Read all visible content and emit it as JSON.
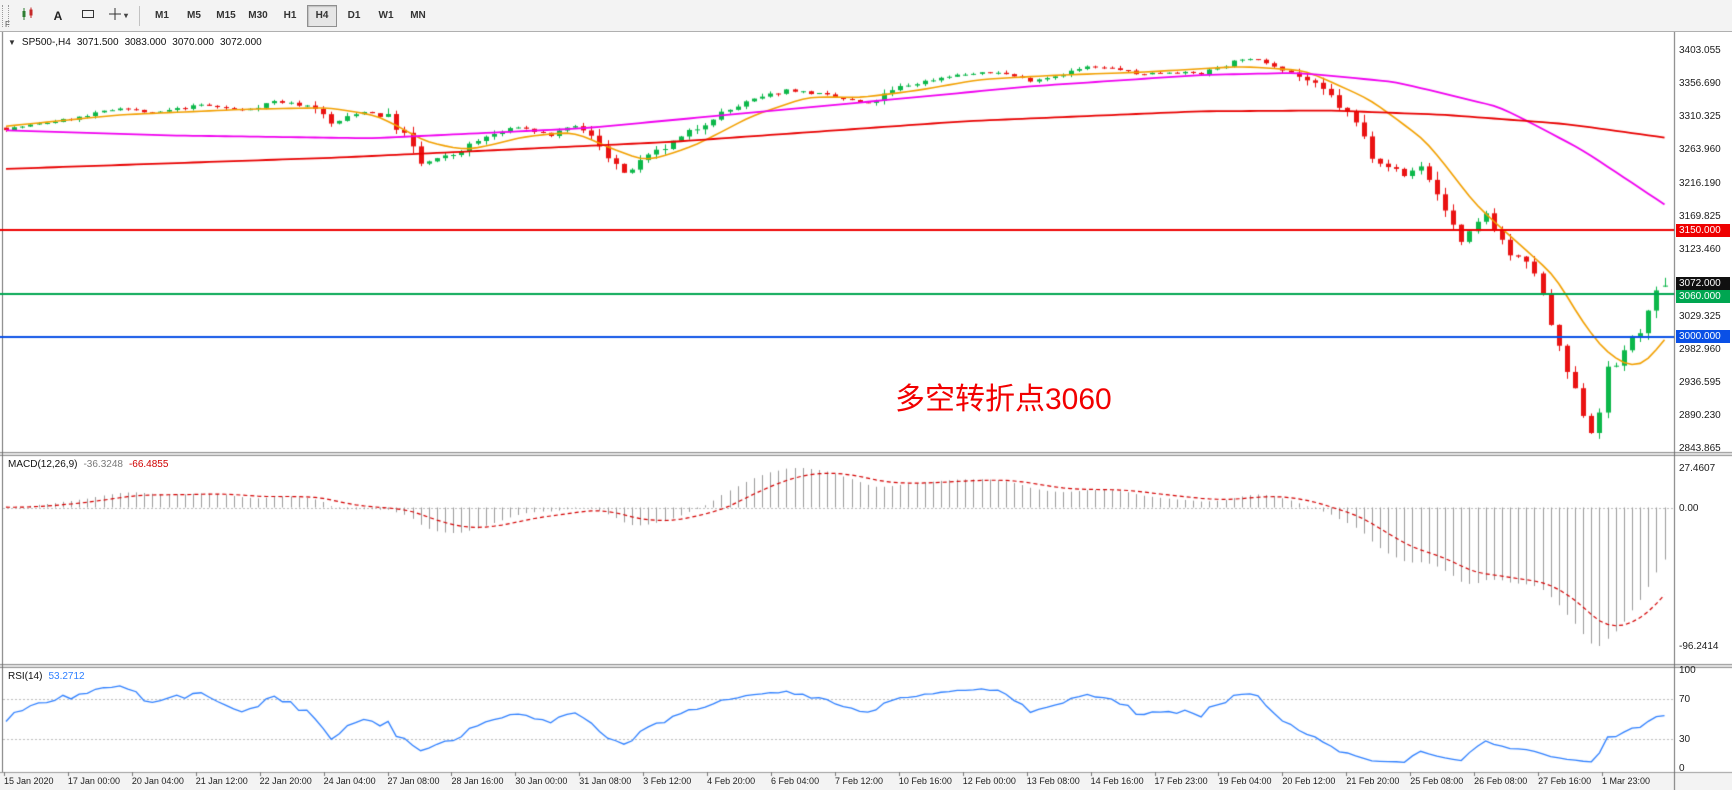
{
  "toolbar": {
    "f_label": "F",
    "text_tool_label": "A",
    "caret_glyph": "▾",
    "timeframes": [
      {
        "label": "M1",
        "active": false
      },
      {
        "label": "M5",
        "active": false
      },
      {
        "label": "M15",
        "active": false
      },
      {
        "label": "M30",
        "active": false
      },
      {
        "label": "H1",
        "active": false
      },
      {
        "label": "H4",
        "active": true
      },
      {
        "label": "D1",
        "active": false
      },
      {
        "label": "W1",
        "active": false
      },
      {
        "label": "MN",
        "active": false
      }
    ]
  },
  "chart": {
    "collapse_glyph": "▼",
    "symbol_title": "SP500-,H4",
    "quote": {
      "open": "3071.500",
      "high": "3083.000",
      "low": "3070.000",
      "close": "3072.000"
    },
    "annotation": {
      "text": "多空转折点3060",
      "color": "#f20000"
    },
    "price_axis": [
      "3403.055",
      "3356.690",
      "3310.325",
      "3263.960",
      "3216.190",
      "3169.825",
      "3123.460",
      "3029.325",
      "2982.960",
      "2936.595",
      "2890.230",
      "2843.865"
    ],
    "levels": [
      {
        "label": "3150.000",
        "price": 3150.0,
        "color": "#ee0000"
      },
      {
        "label": "3060.000",
        "price": 3060.0,
        "color": "#00a651"
      },
      {
        "label": "3000.000",
        "price": 3000.0,
        "color": "#0a50e6"
      }
    ],
    "current_price": {
      "label": "3072.000",
      "price": 3072.0,
      "color": "#101010"
    },
    "time_axis": [
      "15 Jan 2020",
      "17 Jan 00:00",
      "20 Jan 04:00",
      "21 Jan 12:00",
      "22 Jan 20:00",
      "24 Jan 04:00",
      "27 Jan 08:00",
      "28 Jan 16:00",
      "30 Jan 00:00",
      "31 Jan 08:00",
      "3 Feb 12:00",
      "4 Feb 20:00",
      "6 Feb 04:00",
      "7 Feb 12:00",
      "10 Feb 16:00",
      "12 Feb 00:00",
      "13 Feb 08:00",
      "14 Feb 16:00",
      "17 Feb 23:00",
      "19 Feb 04:00",
      "20 Feb 12:00",
      "21 Feb 20:00",
      "25 Feb 08:00",
      "26 Feb 08:00",
      "27 Feb 16:00",
      "1 Mar 23:00"
    ]
  },
  "macd": {
    "label": "MACD(12,26,9)",
    "value_main": "-36.3248",
    "value_signal": "-66.4855",
    "scale": [
      "27.4607",
      "0.00",
      "-96.2414"
    ]
  },
  "rsi": {
    "label": "RSI(14)",
    "value": "53.2712",
    "scale": [
      "100",
      "70",
      "30",
      "0"
    ]
  },
  "chart_data": {
    "type": "candlestick",
    "symbol": "SP500",
    "timeframe": "H4",
    "visible_range": {
      "start": "15 Jan 2020",
      "end": "1 Mar 23:00"
    },
    "candle_count": 205,
    "seed": 7,
    "y_axis": {
      "min": 2843.865,
      "max": 3403.055
    },
    "macd_limits": {
      "min": -96.2414,
      "max": 27.4607
    },
    "rsi_limits": {
      "min": 0,
      "max": 100,
      "levels": [
        70,
        30
      ]
    },
    "close_anchors": [
      [
        0,
        3292
      ],
      [
        5,
        3301
      ],
      [
        10,
        3310
      ],
      [
        14,
        3322
      ],
      [
        18,
        3314
      ],
      [
        24,
        3326
      ],
      [
        29,
        3318
      ],
      [
        33,
        3331
      ],
      [
        38,
        3323
      ],
      [
        40,
        3299
      ],
      [
        44,
        3317
      ],
      [
        47,
        3309
      ],
      [
        49,
        3283
      ],
      [
        51,
        3243
      ],
      [
        55,
        3256
      ],
      [
        59,
        3281
      ],
      [
        63,
        3295
      ],
      [
        67,
        3283
      ],
      [
        70,
        3297
      ],
      [
        73,
        3271
      ],
      [
        76,
        3228
      ],
      [
        79,
        3252
      ],
      [
        83,
        3279
      ],
      [
        87,
        3309
      ],
      [
        91,
        3329
      ],
      [
        96,
        3347
      ],
      [
        100,
        3341
      ],
      [
        103,
        3334
      ],
      [
        106,
        3327
      ],
      [
        110,
        3351
      ],
      [
        116,
        3367
      ],
      [
        122,
        3372
      ],
      [
        126,
        3360
      ],
      [
        129,
        3367
      ],
      [
        133,
        3379
      ],
      [
        137,
        3376
      ],
      [
        139,
        3369
      ],
      [
        143,
        3372
      ],
      [
        147,
        3370
      ],
      [
        152,
        3391
      ],
      [
        155,
        3386
      ],
      [
        157,
        3378
      ],
      [
        160,
        3360
      ],
      [
        163,
        3337
      ],
      [
        166,
        3300
      ],
      [
        168,
        3258
      ],
      [
        172,
        3226
      ],
      [
        174,
        3241
      ],
      [
        177,
        3180
      ],
      [
        179,
        3131
      ],
      [
        182,
        3174
      ],
      [
        185,
        3116
      ],
      [
        188,
        3092
      ],
      [
        191,
        2980
      ],
      [
        193,
        2921
      ],
      [
        195,
        2867
      ],
      [
        196,
        2900
      ],
      [
        197,
        2951
      ],
      [
        198,
        2960
      ],
      [
        199,
        2984
      ],
      [
        200,
        2995
      ],
      [
        201,
        3012
      ],
      [
        202,
        3030
      ],
      [
        203,
        3058
      ],
      [
        204,
        3072
      ]
    ],
    "ma_fast_anchors": [
      [
        0,
        3296
      ],
      [
        14,
        3312
      ],
      [
        30,
        3320
      ],
      [
        40,
        3322
      ],
      [
        46,
        3310
      ],
      [
        52,
        3272
      ],
      [
        57,
        3262
      ],
      [
        64,
        3282
      ],
      [
        70,
        3288
      ],
      [
        75,
        3262
      ],
      [
        79,
        3246
      ],
      [
        85,
        3270
      ],
      [
        92,
        3312
      ],
      [
        99,
        3338
      ],
      [
        105,
        3336
      ],
      [
        112,
        3346
      ],
      [
        120,
        3362
      ],
      [
        130,
        3368
      ],
      [
        140,
        3372
      ],
      [
        152,
        3380
      ],
      [
        160,
        3374
      ],
      [
        168,
        3332
      ],
      [
        175,
        3272
      ],
      [
        181,
        3182
      ],
      [
        186,
        3132
      ],
      [
        191,
        3080
      ],
      [
        194,
        3018
      ],
      [
        197,
        2975
      ],
      [
        200,
        2956
      ],
      [
        202,
        2962
      ],
      [
        204,
        2996
      ]
    ],
    "ma_mid_anchors": [
      [
        0,
        3290
      ],
      [
        20,
        3283
      ],
      [
        45,
        3279
      ],
      [
        71,
        3293
      ],
      [
        102,
        3326
      ],
      [
        126,
        3352
      ],
      [
        147,
        3368
      ],
      [
        159,
        3371
      ],
      [
        171,
        3358
      ],
      [
        184,
        3322
      ],
      [
        194,
        3262
      ],
      [
        204,
        3186
      ]
    ],
    "ma_slow_anchors": [
      [
        0,
        3236
      ],
      [
        41,
        3252
      ],
      [
        82,
        3274
      ],
      [
        118,
        3303
      ],
      [
        147,
        3317
      ],
      [
        163,
        3318
      ],
      [
        177,
        3312
      ],
      [
        192,
        3299
      ],
      [
        204,
        3280
      ]
    ],
    "colors": {
      "up": "#0cb84a",
      "down": "#ea1212",
      "ma_fast": "#f2a000",
      "ma_mid": "#f000f0",
      "ma_slow": "#e80000",
      "macd_hist": "#9b9b9b",
      "macd_signal": "#d40000",
      "rsi_line": "#2f80ff"
    }
  }
}
